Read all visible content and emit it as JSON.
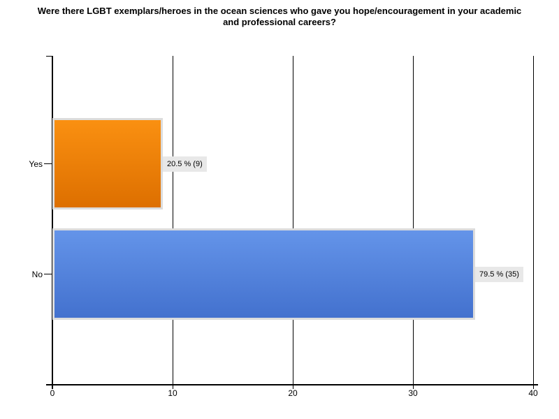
{
  "chart_data": {
    "type": "bar",
    "orientation": "horizontal",
    "title": "Were there LGBT exemplars/heroes in the ocean sciences who gave you hope/encouragement in your academic and professional careers?",
    "categories": [
      "Yes",
      "No"
    ],
    "values": [
      9,
      35
    ],
    "percentages": [
      20.5,
      79.5
    ],
    "value_labels": [
      "20.5 % (9)",
      "79.5 % (35)"
    ],
    "xlabel": "",
    "ylabel": "",
    "xlim": [
      0,
      40
    ],
    "x_ticks": [
      0,
      10,
      20,
      30,
      40
    ],
    "grid": true,
    "legend": "none",
    "bar_colors": [
      {
        "top": "#fa9011",
        "bottom": "#dd6f00"
      },
      {
        "top": "#6494e9",
        "bottom": "#4371ce"
      }
    ],
    "bar_border_color": "#dcdcdc",
    "value_label_bg": "#e8e8e8",
    "axis_color": "#000000",
    "background_color": "#ffffff"
  }
}
